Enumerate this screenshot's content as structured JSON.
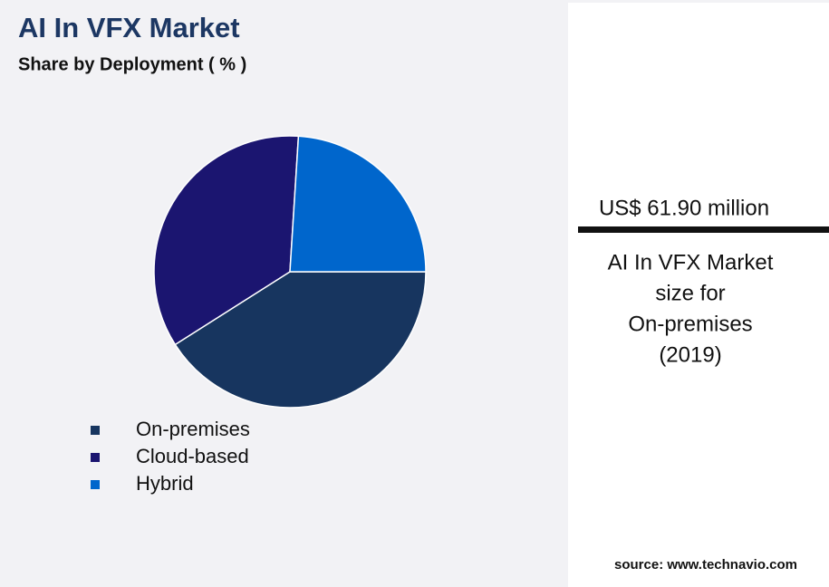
{
  "chart_data": {
    "type": "pie",
    "title": "AI In VFX Market",
    "subtitle": "Share by Deployment ( % )",
    "categories": [
      "On-premises",
      "Cloud-based",
      "Hybrid"
    ],
    "values": [
      41,
      35,
      24
    ],
    "colors": [
      "#17355f",
      "#1b1570",
      "#0066cc"
    ],
    "start_angle": 90
  },
  "callout": {
    "value": "US$ 61.90 million",
    "lines": [
      "AI In VFX Market",
      "size for",
      "On-premises",
      "(2019)"
    ]
  },
  "source": "source: www.technavio.com"
}
